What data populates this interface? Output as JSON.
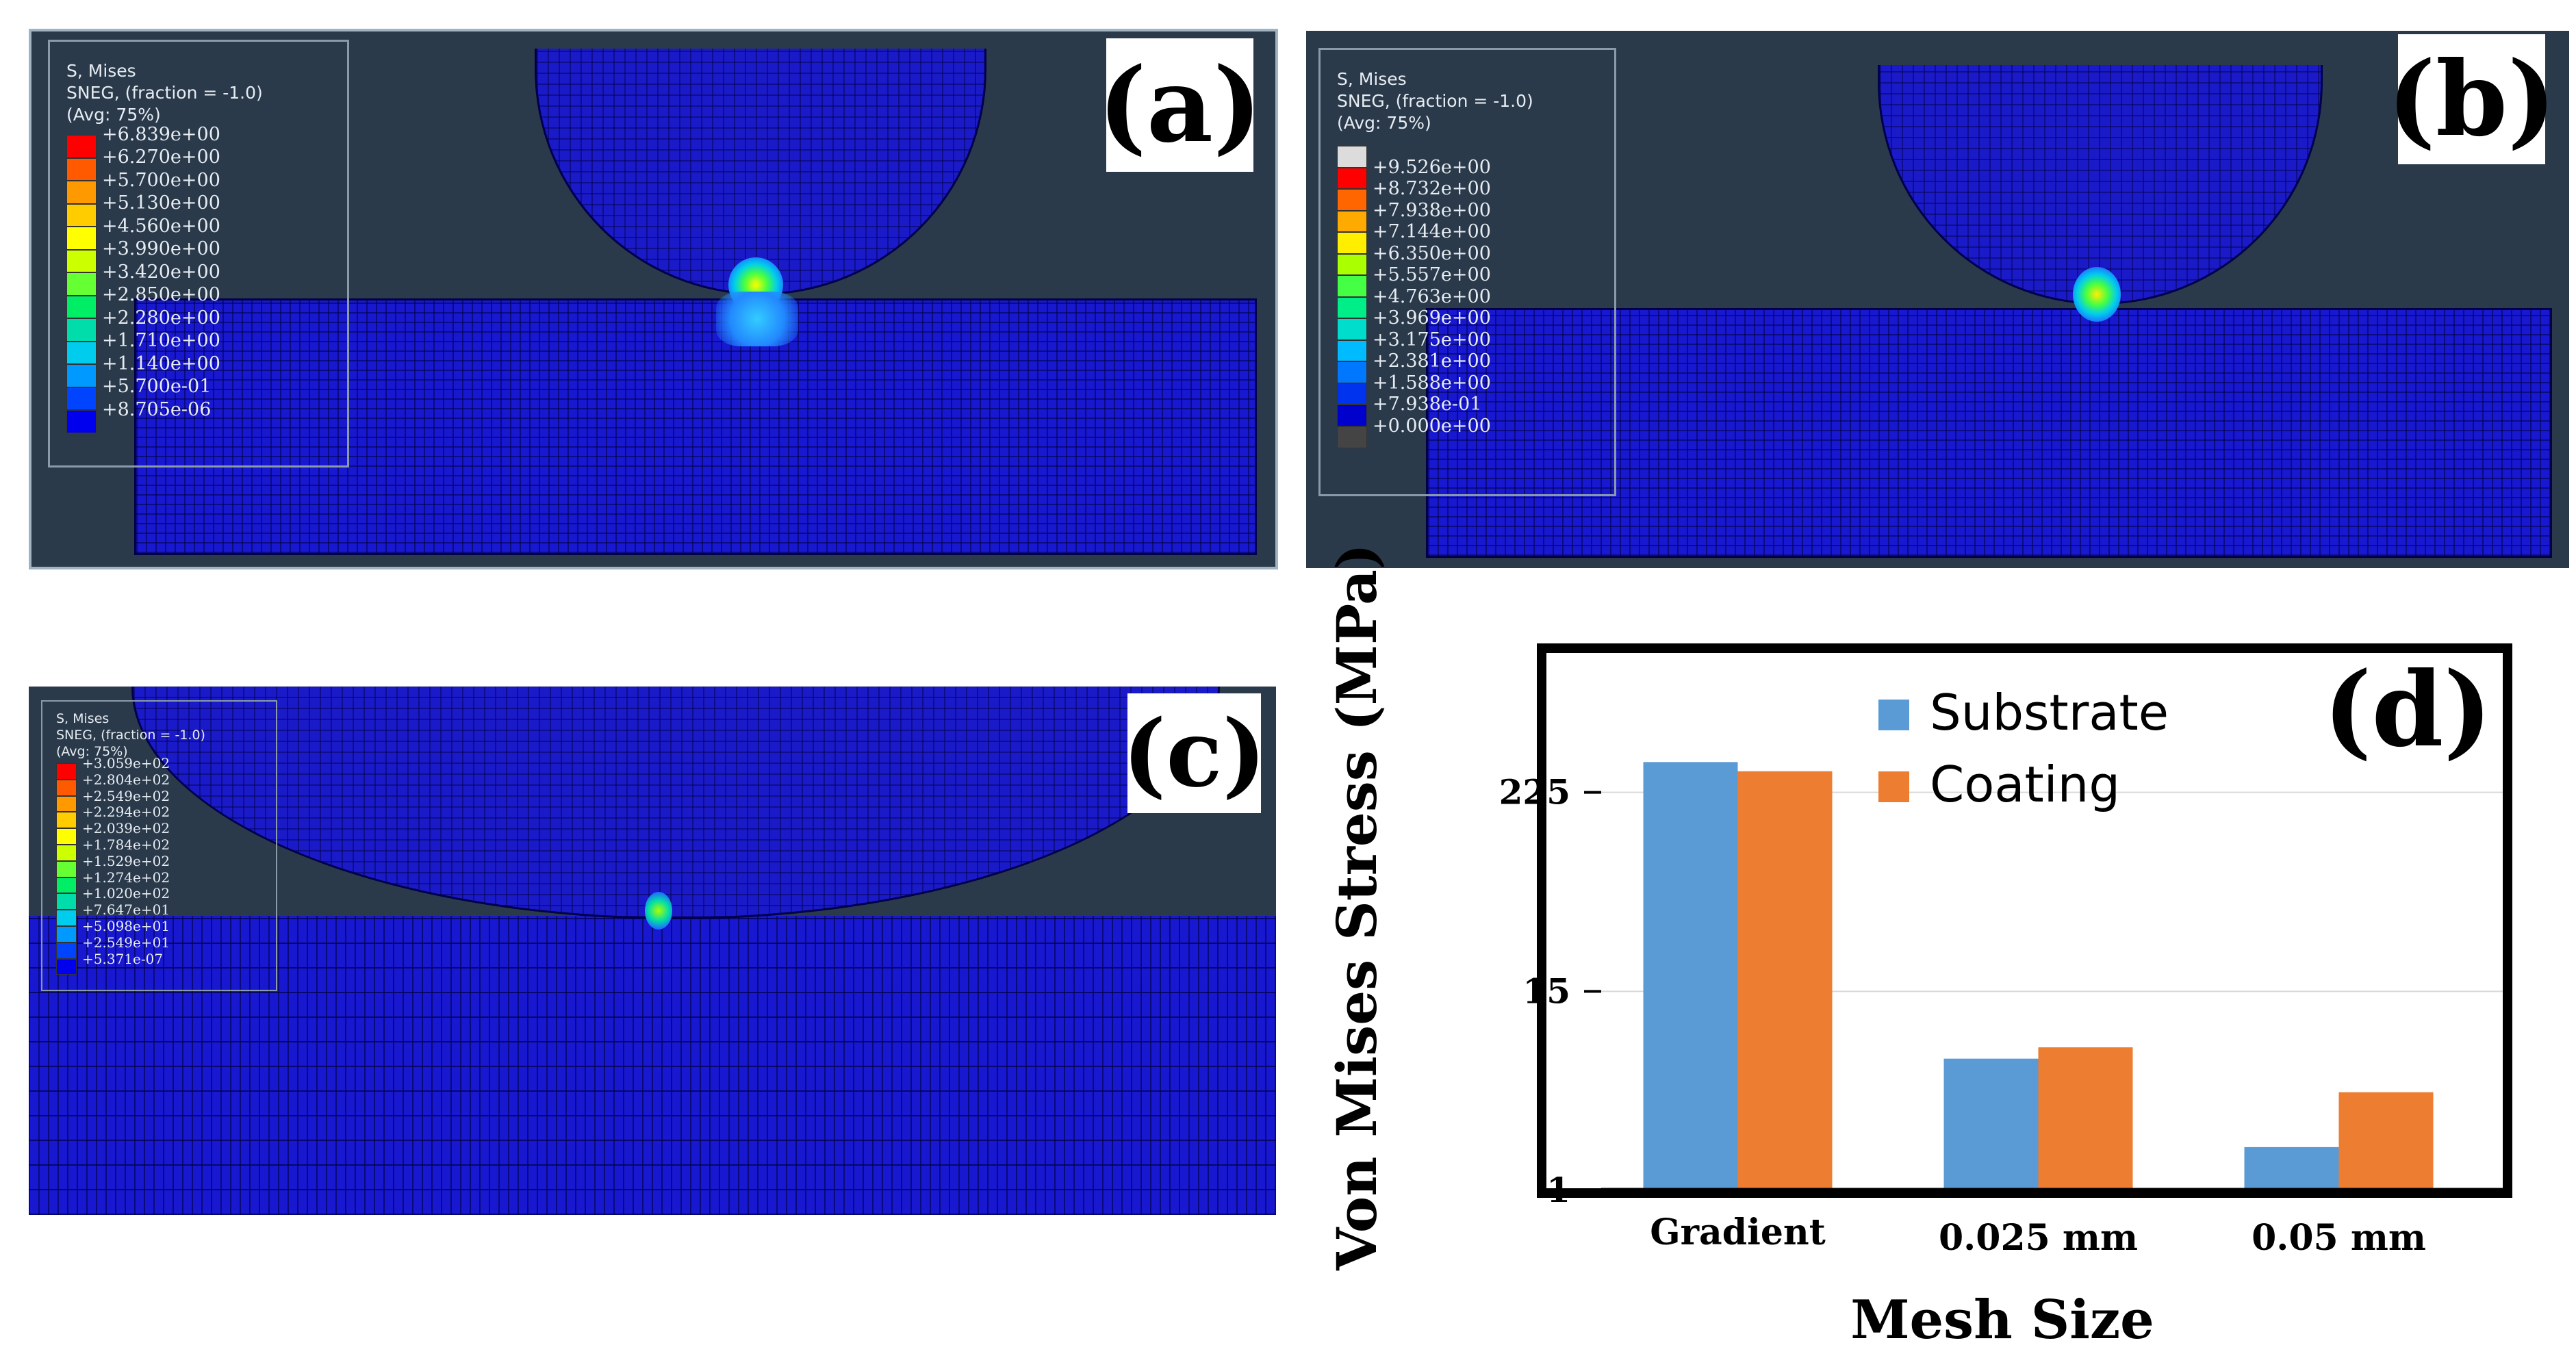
{
  "panels": {
    "a": {
      "label": "(a)",
      "legend": {
        "line1": "S, Mises",
        "line2": "SNEG, (fraction = -1.0)",
        "line3": "(Avg: 75%)",
        "values": [
          "+6.839e+00",
          "+6.270e+00",
          "+5.700e+00",
          "+5.130e+00",
          "+4.560e+00",
          "+3.990e+00",
          "+3.420e+00",
          "+2.850e+00",
          "+2.280e+00",
          "+1.710e+00",
          "+1.140e+00",
          "+5.700e-01",
          "+8.705e-06"
        ],
        "colors": [
          "#ff0000",
          "#ff5a00",
          "#ff9900",
          "#ffcc00",
          "#ffff00",
          "#ccff00",
          "#66ff33",
          "#00ee66",
          "#00ddaa",
          "#00ccee",
          "#0099ff",
          "#0044ff",
          "#0000ee"
        ]
      }
    },
    "b": {
      "label": "(b)",
      "legend": {
        "line1": "S, Mises",
        "line2": "SNEG, (fraction = -1.0)",
        "line3": "(Avg: 75%)",
        "values": [
          "+9.526e+00",
          "+8.732e+00",
          "+7.938e+00",
          "+7.144e+00",
          "+6.350e+00",
          "+5.557e+00",
          "+4.763e+00",
          "+3.969e+00",
          "+3.175e+00",
          "+2.381e+00",
          "+1.588e+00",
          "+7.938e-01",
          "+0.000e+00"
        ],
        "colors": [
          "#dcdcdc",
          "#ff0000",
          "#ff6600",
          "#ffaa00",
          "#ffee00",
          "#aaff00",
          "#44ff44",
          "#00ee88",
          "#00ddcc",
          "#00bbff",
          "#0077ff",
          "#0033ee",
          "#0000cc",
          "#444444"
        ]
      }
    },
    "c": {
      "label": "(c)",
      "legend": {
        "line1": "S, Mises",
        "line2": "SNEG, (fraction = -1.0)",
        "line3": "(Avg: 75%)",
        "values": [
          "+3.059e+02",
          "+2.804e+02",
          "+2.549e+02",
          "+2.294e+02",
          "+2.039e+02",
          "+1.784e+02",
          "+1.529e+02",
          "+1.274e+02",
          "+1.020e+02",
          "+7.647e+01",
          "+5.098e+01",
          "+2.549e+01",
          "+5.371e-07"
        ],
        "colors": [
          "#ff0000",
          "#ff5a00",
          "#ff9900",
          "#ffcc00",
          "#ffff00",
          "#ccff00",
          "#66ff33",
          "#00ee66",
          "#00ddaa",
          "#00ccee",
          "#0099ff",
          "#0044ff",
          "#0000ee"
        ]
      }
    }
  },
  "chart_data": {
    "type": "bar",
    "label": "(d)",
    "categories": [
      "Gradient",
      "0.025 mm",
      "0.05 mm"
    ],
    "series": [
      {
        "name": "Substrate",
        "color": "#5b9bd5",
        "values": [
          340,
          6,
          1.8
        ]
      },
      {
        "name": "Coating",
        "color": "#ed7d31",
        "values": [
          300,
          7,
          3.8
        ]
      }
    ],
    "yscale": "log",
    "yticks": [
      1,
      15,
      225
    ],
    "ytick_labels": [
      "1",
      "15",
      "225"
    ],
    "ylim": [
      1,
      1500
    ],
    "xlabel": "Mesh Size",
    "ylabel": "Von Mises Stress (MPa)",
    "legend_position": "top-center"
  }
}
